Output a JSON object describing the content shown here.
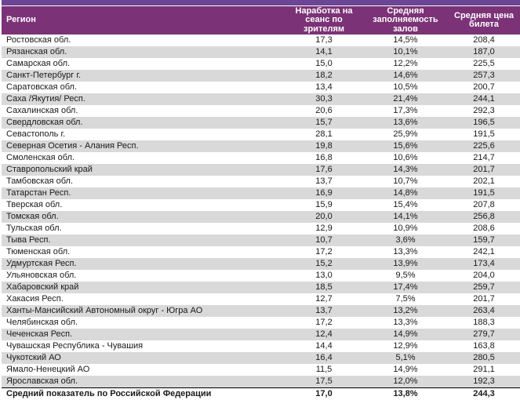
{
  "colors": {
    "top_stripe": "#6b4695",
    "header_bg": "#7b3277",
    "header_text": "#ffffff",
    "row_alt": "#d9d9d9",
    "text": "#1a1a1a",
    "footer_border": "#000000"
  },
  "chart_data": {
    "type": "table",
    "columns": [
      "Регион",
      "Наработка на сеанс по зрителям",
      "Средняя заполняемость залов",
      "Средняя цена билета"
    ],
    "rows": [
      [
        "Ростовская обл.",
        "17,3",
        "14,5%",
        "208,4"
      ],
      [
        "Рязанская обл.",
        "14,1",
        "10,1%",
        "187,0"
      ],
      [
        "Самарская обл.",
        "15,0",
        "12,2%",
        "225,5"
      ],
      [
        "Санкт-Петербург г.",
        "18,2",
        "14,6%",
        "257,3"
      ],
      [
        "Саратовская обл.",
        "13,4",
        "10,5%",
        "200,7"
      ],
      [
        "Саха /Якутия/ Респ.",
        "30,3",
        "21,4%",
        "244,1"
      ],
      [
        "Сахалинская обл.",
        "20,6",
        "17,3%",
        "292,3"
      ],
      [
        "Свердловская обл.",
        "15,7",
        "13,6%",
        "196,5"
      ],
      [
        "Севастополь г.",
        "28,1",
        "25,9%",
        "191,5"
      ],
      [
        "Северная Осетия - Алания Респ.",
        "19,8",
        "15,6%",
        "225,6"
      ],
      [
        "Смоленская обл.",
        "16,8",
        "10,6%",
        "214,7"
      ],
      [
        "Ставропольский край",
        "17,6",
        "14,3%",
        "201,7"
      ],
      [
        "Тамбовская обл.",
        "13,7",
        "10,7%",
        "202,1"
      ],
      [
        "Татарстан Респ.",
        "16,9",
        "14,8%",
        "191,5"
      ],
      [
        "Тверская обл.",
        "15,9",
        "15,4%",
        "207,8"
      ],
      [
        "Томская обл.",
        "20,0",
        "14,1%",
        "256,8"
      ],
      [
        "Тульская обл.",
        "12,9",
        "10,9%",
        "208,6"
      ],
      [
        "Тыва Респ.",
        "10,7",
        "3,6%",
        "159,7"
      ],
      [
        "Тюменская обл.",
        "17,2",
        "13,3%",
        "242,1"
      ],
      [
        "Удмуртская Респ.",
        "15,2",
        "13,9%",
        "173,4"
      ],
      [
        "Ульяновская обл.",
        "13,0",
        "9,5%",
        "204,0"
      ],
      [
        "Хабаровский край",
        "18,5",
        "17,4%",
        "259,7"
      ],
      [
        "Хакасия Респ.",
        "12,7",
        "7,5%",
        "201,7"
      ],
      [
        "Ханты-Мансийский Автономный округ - Югра АО",
        "13,7",
        "13,2%",
        "263,4"
      ],
      [
        "Челябинская обл.",
        "17,2",
        "13,3%",
        "188,3"
      ],
      [
        "Чеченская Респ.",
        "12,4",
        "14,9%",
        "279,7"
      ],
      [
        "Чувашская Республика - Чувашия",
        "14,4",
        "12,9%",
        "163,8"
      ],
      [
        "Чукотский АО",
        "16,4",
        "5,1%",
        "280,5"
      ],
      [
        "Ямало-Ненецкий АО",
        "11,5",
        "14,9%",
        "291,1"
      ],
      [
        "Ярославская обл.",
        "17,5",
        "12,0%",
        "192,3"
      ]
    ],
    "footer_row": [
      "Средний показатель по Российской Федерации",
      "17,0",
      "13,8%",
      "244,3"
    ]
  }
}
